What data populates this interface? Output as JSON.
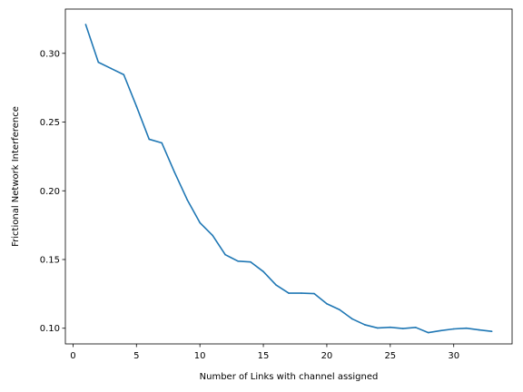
{
  "chart_data": {
    "type": "line",
    "title": "",
    "xlabel": "Number of Links with channel assigned",
    "ylabel": "Frictional Network Interference",
    "xlim": [
      -0.6,
      34.6
    ],
    "ylim": [
      0.0886,
      0.3322
    ],
    "xticks": [
      0,
      5,
      10,
      15,
      20,
      25,
      30
    ],
    "xtick_labels": [
      "0",
      "5",
      "10",
      "15",
      "20",
      "25",
      "30"
    ],
    "yticks": [
      0.1,
      0.15,
      0.2,
      0.25,
      0.3
    ],
    "ytick_labels": [
      "0.10",
      "0.15",
      "0.20",
      "0.25",
      "0.30"
    ],
    "grid": false,
    "legend": "none",
    "series": [
      {
        "color": "#1f77b4",
        "x": [
          1,
          2,
          3,
          4,
          5,
          6,
          7,
          8,
          9,
          10,
          11,
          12,
          13,
          14,
          15,
          16,
          17,
          18,
          19,
          20,
          21,
          22,
          23,
          24,
          25,
          26,
          27,
          28,
          29,
          30,
          31,
          32,
          33
        ],
        "values": [
          0.321,
          0.2935,
          0.289,
          0.2845,
          0.2615,
          0.2375,
          0.2348,
          0.2135,
          0.1935,
          0.1768,
          0.1675,
          0.1535,
          0.1488,
          0.1482,
          0.1412,
          0.1315,
          0.1255,
          0.1255,
          0.1252,
          0.1178,
          0.1135,
          0.1068,
          0.1025,
          0.1002,
          0.1007,
          0.0998,
          0.1006,
          0.0968,
          0.0983,
          0.0995,
          0.1,
          0.0988,
          0.0977
        ]
      }
    ]
  }
}
